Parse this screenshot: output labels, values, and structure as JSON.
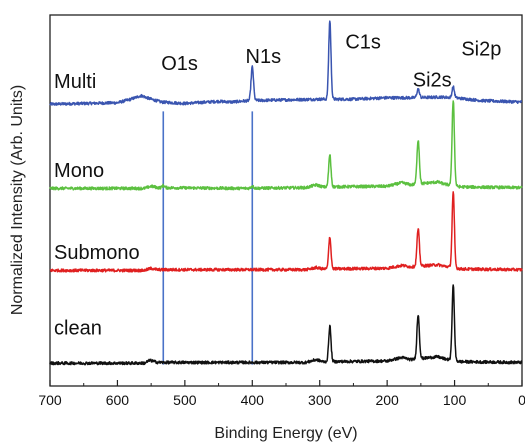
{
  "chart_data": {
    "type": "line",
    "xlabel": "Binding Energy (eV)",
    "ylabel": "Normalized Intensity (Arb. Units)",
    "xlim": [
      700,
      0
    ],
    "x_reversed": true,
    "xticks": [
      700,
      600,
      500,
      400,
      300,
      200,
      100,
      0
    ],
    "y_ticks_shown": false,
    "grid": false,
    "colors": {
      "Multi": "#3a55b0",
      "Mono": "#5cc040",
      "Submono": "#e02020",
      "clean": "#111111",
      "guides": "#4a72c8"
    },
    "series": [
      {
        "name": "Multi",
        "offset": 3.6,
        "baseline_points": [
          [
            700,
            0.05
          ],
          [
            600,
            0.07
          ],
          [
            580,
            0.12
          ],
          [
            565,
            0.17
          ],
          [
            550,
            0.12
          ],
          [
            535,
            0.08
          ],
          [
            500,
            0.06
          ],
          [
            450,
            0.09
          ],
          [
            430,
            0.08
          ],
          [
            405,
            0.1
          ],
          [
            300,
            0.12
          ],
          [
            250,
            0.12
          ],
          [
            200,
            0.14
          ],
          [
            160,
            0.14
          ],
          [
            120,
            0.15
          ],
          [
            100,
            0.14
          ],
          [
            60,
            0.1
          ],
          [
            0,
            0.08
          ]
        ],
        "peaks": [
          {
            "x": 400,
            "height": 0.47,
            "width": 1.8
          },
          {
            "x": 285,
            "height": 1.1,
            "width": 1.7
          },
          {
            "x": 154,
            "height": 0.12,
            "width": 1.8
          },
          {
            "x": 102,
            "height": 0.15,
            "width": 1.7
          }
        ]
      },
      {
        "name": "Mono",
        "offset": 2.45,
        "baseline_points": [
          [
            700,
            0.02
          ],
          [
            560,
            0.02
          ],
          [
            550,
            0.05
          ],
          [
            540,
            0.03
          ],
          [
            420,
            0.02
          ],
          [
            320,
            0.03
          ],
          [
            305,
            0.07
          ],
          [
            295,
            0.04
          ],
          [
            200,
            0.05
          ],
          [
            178,
            0.1
          ],
          [
            165,
            0.07
          ],
          [
            125,
            0.11
          ],
          [
            115,
            0.08
          ],
          [
            90,
            0.04
          ],
          [
            0,
            0.03
          ]
        ],
        "peaks": [
          {
            "x": 285,
            "height": 0.45,
            "width": 1.7
          },
          {
            "x": 154,
            "height": 0.62,
            "width": 1.8
          },
          {
            "x": 102,
            "height": 1.2,
            "width": 1.7
          },
          {
            "x": 400,
            "height": 0.03,
            "width": 1.8
          },
          {
            "x": 532,
            "height": 0.03,
            "width": 1.8
          }
        ]
      },
      {
        "name": "Submono",
        "offset": 1.3,
        "baseline_points": [
          [
            700,
            0.02
          ],
          [
            560,
            0.02
          ],
          [
            550,
            0.05
          ],
          [
            540,
            0.03
          ],
          [
            320,
            0.03
          ],
          [
            305,
            0.06
          ],
          [
            295,
            0.04
          ],
          [
            200,
            0.05
          ],
          [
            178,
            0.09
          ],
          [
            165,
            0.07
          ],
          [
            125,
            0.1
          ],
          [
            115,
            0.08
          ],
          [
            90,
            0.04
          ],
          [
            0,
            0.03
          ]
        ],
        "peaks": [
          {
            "x": 285,
            "height": 0.45,
            "width": 1.7
          },
          {
            "x": 154,
            "height": 0.52,
            "width": 1.8
          },
          {
            "x": 102,
            "height": 1.05,
            "width": 1.7
          }
        ]
      },
      {
        "name": "clean",
        "offset": 0.0,
        "baseline_points": [
          [
            700,
            0.02
          ],
          [
            560,
            0.02
          ],
          [
            552,
            0.06
          ],
          [
            540,
            0.03
          ],
          [
            320,
            0.03
          ],
          [
            305,
            0.07
          ],
          [
            295,
            0.04
          ],
          [
            200,
            0.05
          ],
          [
            178,
            0.1
          ],
          [
            165,
            0.07
          ],
          [
            125,
            0.11
          ],
          [
            115,
            0.08
          ],
          [
            90,
            0.04
          ],
          [
            0,
            0.03
          ]
        ],
        "peaks": [
          {
            "x": 285,
            "height": 0.5,
            "width": 1.7
          },
          {
            "x": 154,
            "height": 0.62,
            "width": 1.8
          },
          {
            "x": 102,
            "height": 1.05,
            "width": 1.7
          }
        ]
      }
    ],
    "guide_lines": [
      {
        "x": 532,
        "y_from": 0.0,
        "y_to": 3.55
      },
      {
        "x": 400,
        "y_from": 0.0,
        "y_to": 3.55
      }
    ],
    "peak_labels": [
      {
        "text": "O1s",
        "x": 535,
        "y": 4.13
      },
      {
        "text": "N1s",
        "x": 410,
        "y": 4.23
      },
      {
        "text": "C1s",
        "x": 262,
        "y": 4.43
      },
      {
        "text": "Si2s",
        "x": 162,
        "y": 3.9
      },
      {
        "text": "Si2p",
        "x": 90,
        "y": 4.33
      }
    ],
    "series_labels": [
      {
        "text": "Multi",
        "x": 694,
        "y": 3.88
      },
      {
        "text": "Mono",
        "x": 694,
        "y": 2.63
      },
      {
        "text": "Submono",
        "x": 694,
        "y": 1.48
      },
      {
        "text": "clean",
        "x": 694,
        "y": 0.42
      }
    ],
    "ylim": [
      -0.3,
      4.9
    ]
  }
}
